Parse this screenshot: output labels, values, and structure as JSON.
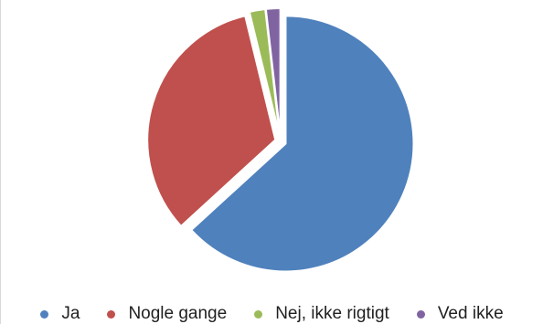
{
  "chart_data": {
    "type": "pie",
    "title": "",
    "legend_position": "bottom",
    "categories": [
      "Ja",
      "Nogle gange",
      "Nej, ikke rigtigt",
      "Ved ikke"
    ],
    "values": [
      63.2,
      33.0,
      2.0,
      1.8
    ],
    "unit": "percent",
    "colors": [
      "#4f81bd",
      "#c0504d",
      "#9bbb59",
      "#8064a2"
    ],
    "exploded": true
  }
}
